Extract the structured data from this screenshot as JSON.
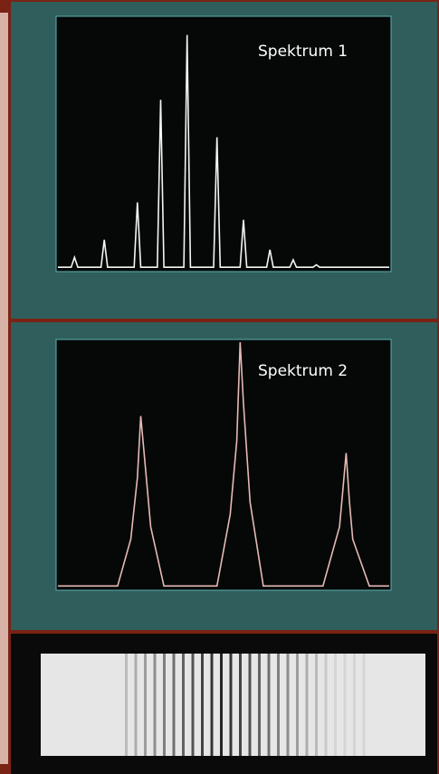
{
  "chart_data": [
    {
      "type": "line",
      "title": "Spektrum 1",
      "color": "#f4f4f4",
      "x": [
        0,
        4,
        5,
        6,
        13,
        14,
        15,
        23,
        24,
        25,
        30,
        31,
        32,
        38,
        39,
        40,
        47,
        48,
        49,
        55,
        56,
        57,
        63,
        64,
        65,
        70,
        71,
        72,
        77,
        78,
        79,
        85,
        86,
        87,
        100
      ],
      "values": [
        1,
        1,
        5,
        1,
        1,
        12,
        1,
        1,
        27,
        1,
        1,
        68,
        1,
        1,
        94,
        1,
        1,
        53,
        1,
        1,
        20,
        1,
        1,
        8,
        1,
        1,
        4,
        1,
        1,
        2,
        1,
        1,
        1,
        1,
        1
      ],
      "xlim": [
        0,
        100
      ],
      "ylim": [
        0,
        100
      ]
    },
    {
      "type": "line",
      "title": "Spektrum 2",
      "color": "#e6b9b6",
      "x": [
        0,
        18,
        22,
        24,
        25,
        26,
        28,
        32,
        48,
        52,
        54,
        55,
        56,
        58,
        62,
        80,
        85,
        86,
        87,
        88,
        89,
        94,
        100
      ],
      "values": [
        1,
        1,
        20,
        45,
        70,
        55,
        25,
        1,
        1,
        30,
        60,
        100,
        75,
        35,
        1,
        1,
        25,
        40,
        55,
        35,
        20,
        1,
        1
      ],
      "xlim": [
        0,
        100
      ],
      "ylim": [
        0,
        100
      ]
    }
  ]
}
